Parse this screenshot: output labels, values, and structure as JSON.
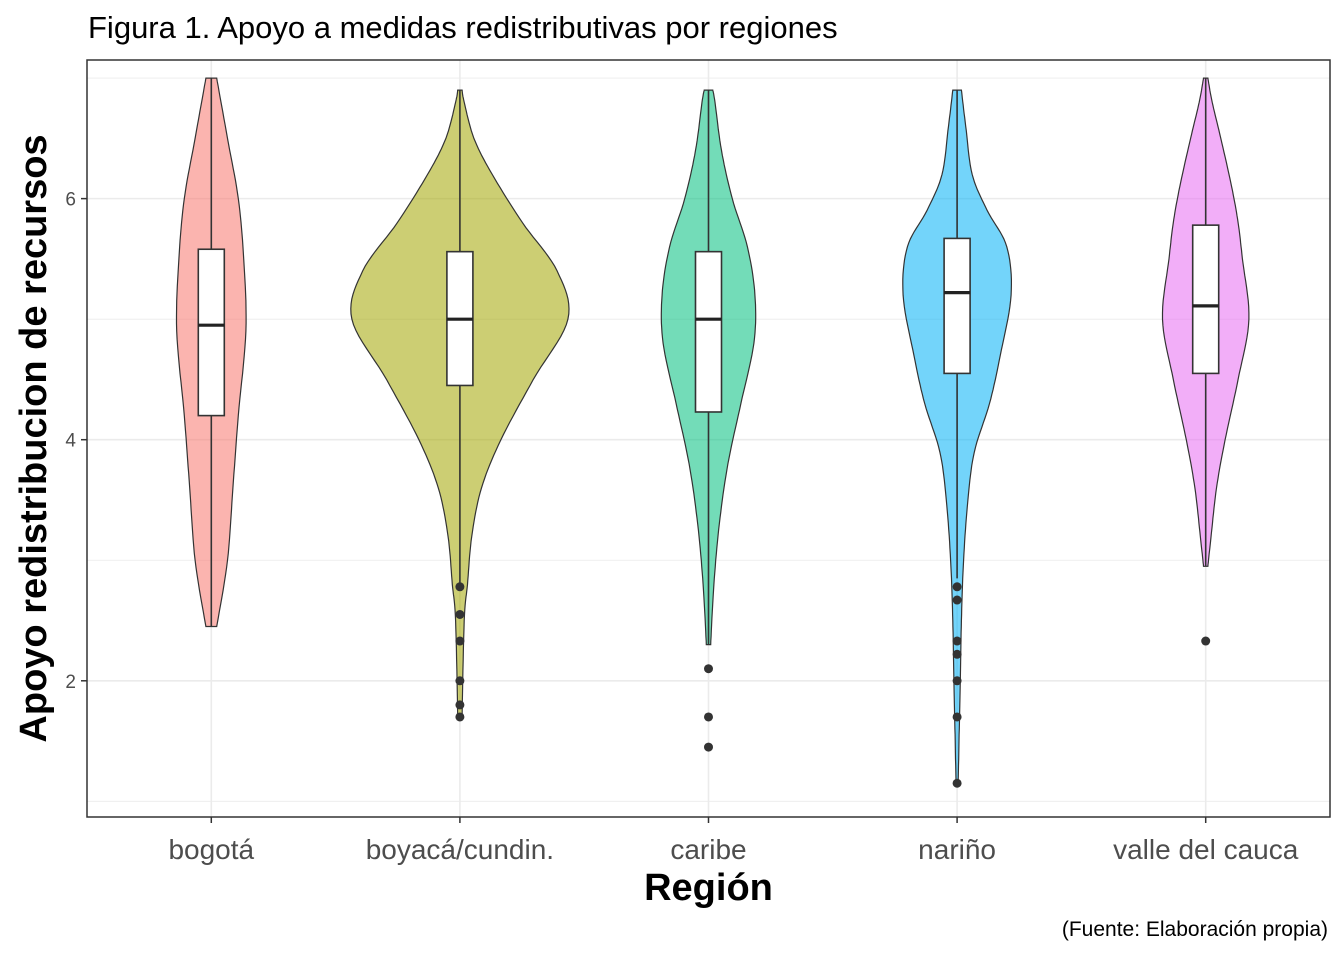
{
  "chart_data": {
    "type": "violin",
    "title": "Figura 1. Apoyo a medidas redistributivas por regiones",
    "xlabel": "Región",
    "ylabel": "Apoyo redistribucion de recursos",
    "caption": "(Fuente: Elaboración propia)",
    "ylim": [
      0.87,
      7.15
    ],
    "yticks": [
      2,
      4,
      6
    ],
    "grid": true,
    "legend": "none",
    "categories": [
      "bogotá",
      "boyacá/cundin.",
      "caribe",
      "nariño",
      "valle del cauca"
    ],
    "series": [
      {
        "category": "bogotá",
        "color": "#F8766D",
        "box": {
          "q1": 4.2,
          "median": 4.95,
          "q3": 5.58,
          "whisker_low": 2.45,
          "whisker_high": 7.0
        },
        "violin": [
          [
            2.45,
            0.05
          ],
          [
            3.0,
            0.15
          ],
          [
            3.6,
            0.2
          ],
          [
            4.2,
            0.25
          ],
          [
            4.9,
            0.32
          ],
          [
            5.5,
            0.3
          ],
          [
            6.0,
            0.25
          ],
          [
            6.5,
            0.15
          ],
          [
            7.0,
            0.05
          ]
        ],
        "outliers": []
      },
      {
        "category": "boyacá/cundin.",
        "color": "#A3A500",
        "box": {
          "q1": 4.45,
          "median": 5.0,
          "q3": 5.56,
          "whisker_low": 2.8,
          "whisker_high": 6.9
        },
        "violin": [
          [
            1.7,
            0.02
          ],
          [
            2.5,
            0.04
          ],
          [
            2.8,
            0.07
          ],
          [
            3.2,
            0.11
          ],
          [
            3.6,
            0.2
          ],
          [
            4.0,
            0.38
          ],
          [
            4.5,
            0.68
          ],
          [
            5.0,
            1.0
          ],
          [
            5.4,
            0.9
          ],
          [
            5.8,
            0.58
          ],
          [
            6.2,
            0.3
          ],
          [
            6.5,
            0.13
          ],
          [
            6.8,
            0.04
          ],
          [
            6.9,
            0.02
          ]
        ],
        "outliers": [
          1.7,
          1.8,
          2.0,
          2.33,
          2.55,
          2.78
        ]
      },
      {
        "category": "caribe",
        "color": "#00BF7D",
        "box": {
          "q1": 4.23,
          "median": 5.0,
          "q3": 5.56,
          "whisker_low": 2.3,
          "whisker_high": 6.9
        },
        "violin": [
          [
            2.3,
            0.02
          ],
          [
            2.8,
            0.05
          ],
          [
            3.3,
            0.1
          ],
          [
            3.8,
            0.18
          ],
          [
            4.3,
            0.3
          ],
          [
            4.8,
            0.42
          ],
          [
            5.2,
            0.43
          ],
          [
            5.6,
            0.36
          ],
          [
            6.0,
            0.22
          ],
          [
            6.4,
            0.12
          ],
          [
            6.8,
            0.06
          ],
          [
            6.9,
            0.04
          ]
        ],
        "outliers": [
          1.45,
          1.7,
          2.1
        ]
      },
      {
        "category": "nariño",
        "color": "#00B0F6",
        "box": {
          "q1": 4.55,
          "median": 5.22,
          "q3": 5.67,
          "whisker_low": 2.85,
          "whisker_high": 6.9
        },
        "violin": [
          [
            1.15,
            0.01
          ],
          [
            1.6,
            0.02
          ],
          [
            2.0,
            0.03
          ],
          [
            2.5,
            0.04
          ],
          [
            3.0,
            0.06
          ],
          [
            3.5,
            0.1
          ],
          [
            3.9,
            0.16
          ],
          [
            4.3,
            0.3
          ],
          [
            4.7,
            0.4
          ],
          [
            5.2,
            0.5
          ],
          [
            5.6,
            0.46
          ],
          [
            5.9,
            0.28
          ],
          [
            6.2,
            0.14
          ],
          [
            6.6,
            0.08
          ],
          [
            6.9,
            0.04
          ]
        ],
        "outliers": [
          1.15,
          1.7,
          2.0,
          2.22,
          2.33,
          2.67,
          2.78
        ]
      },
      {
        "category": "valle del cauca",
        "color": "#E76BF3",
        "box": {
          "q1": 4.55,
          "median": 5.11,
          "q3": 5.78,
          "whisker_low": 2.95,
          "whisker_high": 7.0
        },
        "violin": [
          [
            2.95,
            0.02
          ],
          [
            3.2,
            0.05
          ],
          [
            3.6,
            0.1
          ],
          [
            4.0,
            0.18
          ],
          [
            4.5,
            0.3
          ],
          [
            5.0,
            0.4
          ],
          [
            5.5,
            0.34
          ],
          [
            5.8,
            0.3
          ],
          [
            6.1,
            0.24
          ],
          [
            6.5,
            0.14
          ],
          [
            6.8,
            0.06
          ],
          [
            7.0,
            0.02
          ]
        ],
        "outliers": [
          2.33
        ]
      }
    ]
  }
}
